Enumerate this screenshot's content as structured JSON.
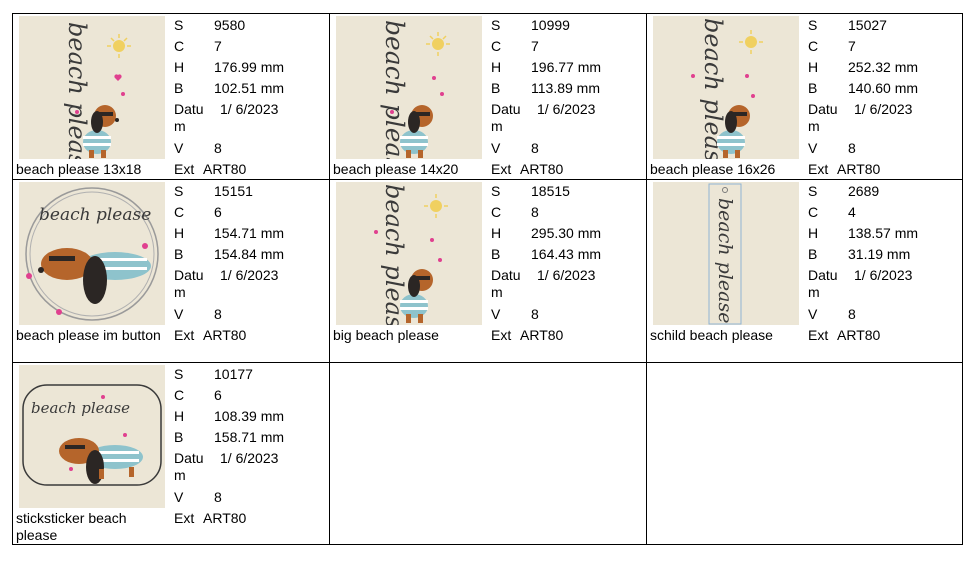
{
  "labels": {
    "s": "S",
    "c": "C",
    "h": "H",
    "b": "B",
    "datum": "Datum",
    "v": "V",
    "ext": "Ext"
  },
  "items": [
    {
      "name": "beach please 13x18",
      "s": "9580",
      "c": "7",
      "h": "176.99 mm",
      "b": "102.51 mm",
      "datum": "1/ 6/2023",
      "v": "8",
      "ext": "ART80",
      "art": "beach please"
    },
    {
      "name": "beach please 14x20",
      "s": "10999",
      "c": "7",
      "h": "196.77 mm",
      "b": "113.89 mm",
      "datum": "1/ 6/2023",
      "v": "8",
      "ext": "ART80",
      "art": "beach please"
    },
    {
      "name": "beach please 16x26",
      "s": "15027",
      "c": "7",
      "h": "252.32 mm",
      "b": "140.60 mm",
      "datum": "1/ 6/2023",
      "v": "8",
      "ext": "ART80",
      "art": "beach please"
    },
    {
      "name": "beach please im button",
      "s": "15151",
      "c": "6",
      "h": "154.71 mm",
      "b": "154.84 mm",
      "datum": "1/ 6/2023",
      "v": "8",
      "ext": "ART80",
      "art": "beach please"
    },
    {
      "name": "big beach please",
      "s": "18515",
      "c": "8",
      "h": "295.30 mm",
      "b": "164.43 mm",
      "datum": "1/ 6/2023",
      "v": "8",
      "ext": "ART80",
      "art": "beach please"
    },
    {
      "name": "schild beach please",
      "s": "2689",
      "c": "4",
      "h": "138.57 mm",
      "b": "31.19 mm",
      "datum": "1/ 6/2023",
      "v": "8",
      "ext": "ART80",
      "art": "beach please"
    },
    {
      "name": "sticksticker beach please",
      "s": "10177",
      "c": "6",
      "h": "108.39 mm",
      "b": "158.71 mm",
      "datum": "1/ 6/2023",
      "v": "8",
      "ext": "ART80",
      "art": "beach please"
    }
  ],
  "colors": {
    "paper": "#ffffff",
    "grid": "#000000",
    "thumb_bg": "#ece6d6",
    "fur": "#b5652b",
    "ear": "#2b2624",
    "stripe": "#8ec3cc",
    "heart": "#e0408f",
    "sun": "#f0d060",
    "ink": "#3a3a3a"
  }
}
